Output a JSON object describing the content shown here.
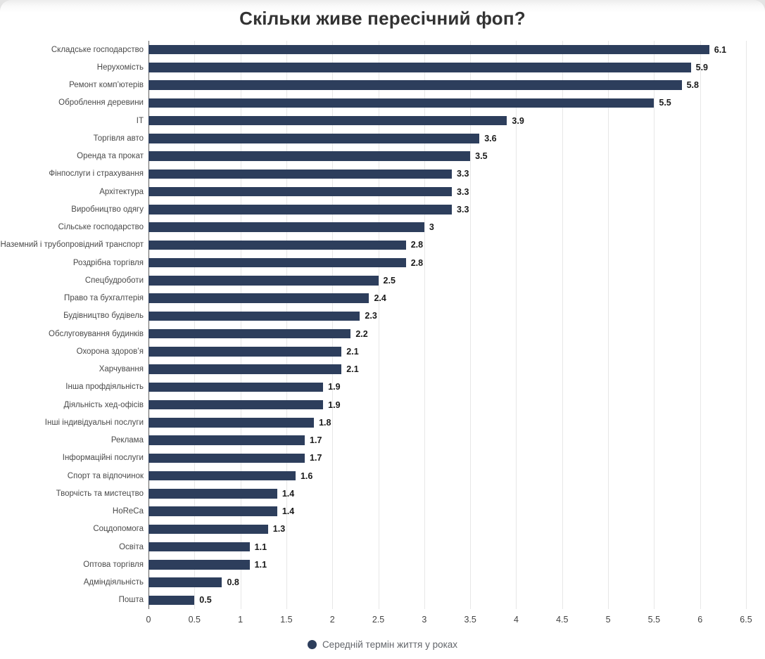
{
  "page": {
    "background_top_band": "#e4e4e4",
    "card_background": "#ffffff"
  },
  "chart_data": {
    "type": "bar",
    "orientation": "horizontal",
    "title": "Скільки живе пересічний фоп?",
    "legend_label": "Середній термін життя у роках",
    "legend_position": "bottom",
    "grid": true,
    "xlim": [
      0,
      6.5
    ],
    "xticks": [
      "0",
      "0.5",
      "1",
      "1.5",
      "2",
      "2.5",
      "3",
      "3.5",
      "4",
      "4.5",
      "5",
      "5.5",
      "6",
      "6.5"
    ],
    "categories": [
      "Складське господарство",
      "Нерухомість",
      "Ремонт комп’ютерів",
      "Оброблення деревини",
      "IT",
      "Торгівля авто",
      "Оренда та прокат",
      "Фінпослуги і страхування",
      "Архітектура",
      "Виробництво одягу",
      "Сільське господарство",
      "Наземний і трубопровідний транспорт",
      "Роздрібна торгівля",
      "Спецбудроботи",
      "Право та бухгалтерія",
      "Будівництво будівель",
      "Обслуговування будинків",
      "Охорона здоров’я",
      "Харчування",
      "Інша профдіяльність",
      "Діяльність хед-офісів",
      "Інші індивідуальні послуги",
      "Реклама",
      "Інформаційні послуги",
      "Спорт та відпочинок",
      "Творчість та мистецтво",
      "HoReCa",
      "Соцдопомога",
      "Освіта",
      "Оптова торгівля",
      "Адміндіяльність",
      "Пошта"
    ],
    "values": [
      6.1,
      5.9,
      5.8,
      5.5,
      3.9,
      3.6,
      3.5,
      3.3,
      3.3,
      3.3,
      3,
      2.8,
      2.8,
      2.5,
      2.4,
      2.3,
      2.2,
      2.1,
      2.1,
      1.9,
      1.9,
      1.8,
      1.7,
      1.7,
      1.6,
      1.4,
      1.4,
      1.3,
      1.1,
      1.1,
      0.8,
      0.5
    ]
  },
  "theme": {
    "bar_color": "#2d3e5c",
    "grid_color": "#e7e7e7",
    "axis_color": "#5f5f5f",
    "title_color": "#333333",
    "label_color": "#4a4a4a",
    "value_color": "#1a1a1a",
    "tick_color": "#444444",
    "legend_text_color": "#63666b",
    "bg_outer": "#e4e4e4"
  }
}
